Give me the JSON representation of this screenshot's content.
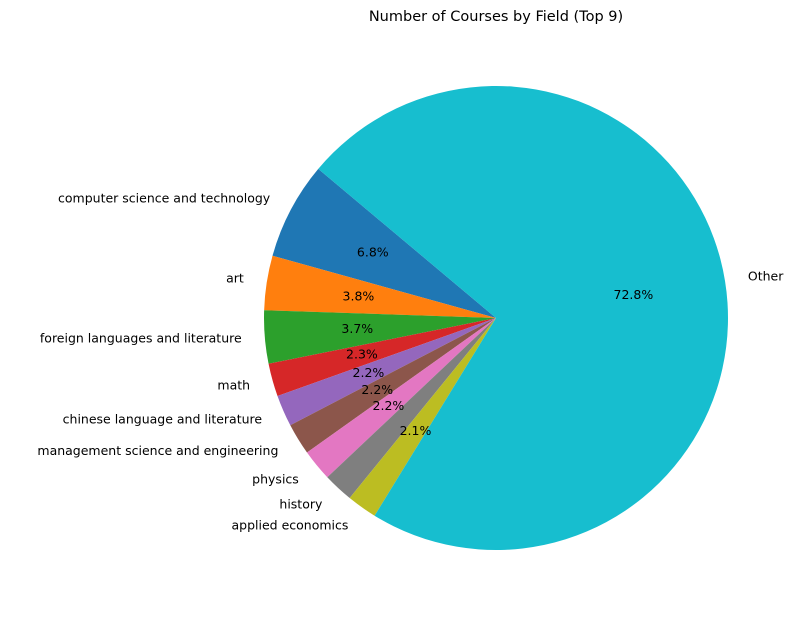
{
  "chart_data": {
    "type": "pie",
    "title": "Number of Courses by Field (Top 9)",
    "categories": [
      "computer science and technology",
      "art",
      "foreign languages and literature",
      "math",
      "chinese language and literature",
      "management science and engineering",
      "physics",
      "history",
      "applied economics",
      "Other"
    ],
    "values": [
      6.8,
      3.8,
      3.7,
      2.3,
      2.2,
      2.2,
      2.2,
      2.1,
      2.1,
      72.8
    ],
    "percent_labels": [
      "6.8%",
      "3.8%",
      "3.7%",
      "2.3%",
      "2.2%",
      "2.2%",
      "2.2%",
      "",
      "2.1%",
      "72.8%"
    ],
    "colors": [
      "#1f77b4",
      "#ff7f0e",
      "#2ca02c",
      "#d62728",
      "#9467bd",
      "#8c564b",
      "#e377c2",
      "#7f7f7f",
      "#bcbd22",
      "#17becf"
    ],
    "start_angle_deg": 140,
    "direction": "counterclockwise",
    "legend": "none"
  }
}
